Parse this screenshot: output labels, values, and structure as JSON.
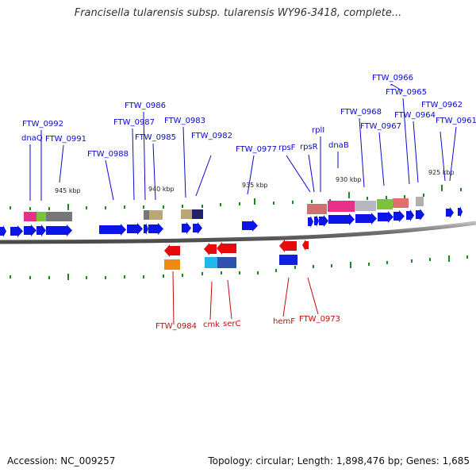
{
  "title": "Francisella tularensis subsp. tularensis WY96-3418, complete...",
  "footer": {
    "accession": "Accession: NC_009257",
    "topology": "Topology: circular; Length: 1,898,476 bp; Genes: 1,685"
  },
  "colors": {
    "forward_gene": "#0a14e6",
    "reverse_gene": "#e60a0a",
    "forward_label": "#0a0ad2",
    "reverse_label": "#c80a0a",
    "tick": "#1a8a1a",
    "backbone": "#8a8a8a"
  },
  "kbp_labels": [
    "945 kbp",
    "940 kbp",
    "935 kbp",
    "930 kbp",
    "925 kbp"
  ],
  "forward_labels": [
    "FTW_0992",
    "dnaQ",
    "FTW_0991",
    "FTW_0988",
    "FTW_0986",
    "FTW_0987",
    "FTW_0985",
    "FTW_0983",
    "FTW_0982",
    "FTW_0977",
    "rpsF",
    "rpsR",
    "rplI",
    "dnaB",
    "FTW_0968",
    "FTW_0966",
    "FTW_0967",
    "FTW_0965",
    "FTW_0964",
    "FTW_0962",
    "FTW_0961"
  ],
  "reverse_labels": [
    "FTW_0984",
    "cmk",
    "serC",
    "hemF",
    "FTW_0973"
  ]
}
